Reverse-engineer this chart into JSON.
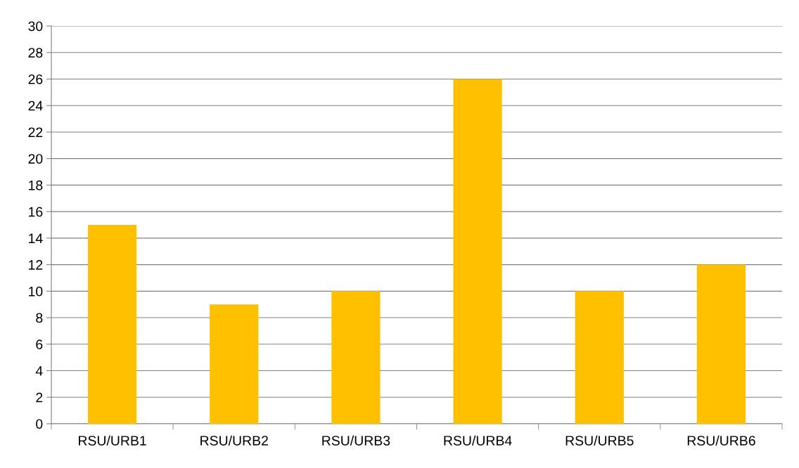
{
  "chart_data": {
    "type": "bar",
    "categories": [
      "RSU/URB1",
      "RSU/URB2",
      "RSU/URB3",
      "RSU/URB4",
      "RSU/URB5",
      "RSU/URB6"
    ],
    "values": [
      15,
      9,
      10,
      26,
      10,
      12
    ],
    "color": "#ffc000",
    "ylim": [
      0,
      30
    ],
    "yticks": [
      0,
      2,
      4,
      6,
      8,
      10,
      12,
      14,
      16,
      18,
      20,
      22,
      24,
      26,
      28,
      30
    ],
    "grid": "y",
    "legend": false
  }
}
